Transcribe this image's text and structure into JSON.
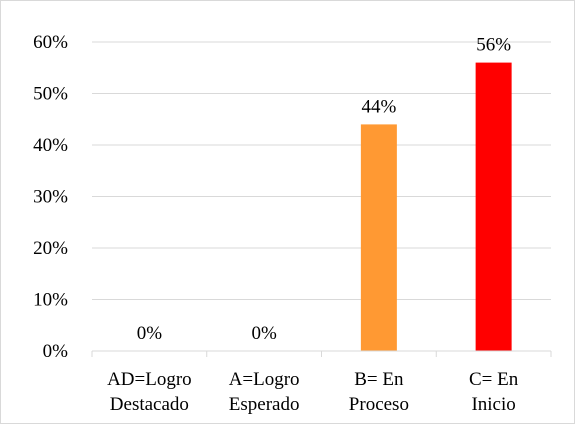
{
  "chart_data": {
    "type": "bar",
    "title": "",
    "xlabel": "",
    "ylabel": "",
    "ylim": [
      0,
      60
    ],
    "y_ticks": [
      "0%",
      "10%",
      "20%",
      "30%",
      "40%",
      "50%",
      "60%"
    ],
    "grid": true,
    "legend": "none",
    "categories": [
      [
        "AD=Logro",
        "Destacado"
      ],
      [
        "A=Logro",
        "Esperado"
      ],
      [
        "B= En",
        "Proceso"
      ],
      [
        "C= En",
        "Inicio"
      ]
    ],
    "values": [
      0,
      0,
      44,
      56
    ],
    "data_labels": [
      "0%",
      "0%",
      "44%",
      "56%"
    ],
    "colors": [
      "#ffffff",
      "#ffffff",
      "#ff9933",
      "#ff0000"
    ]
  }
}
